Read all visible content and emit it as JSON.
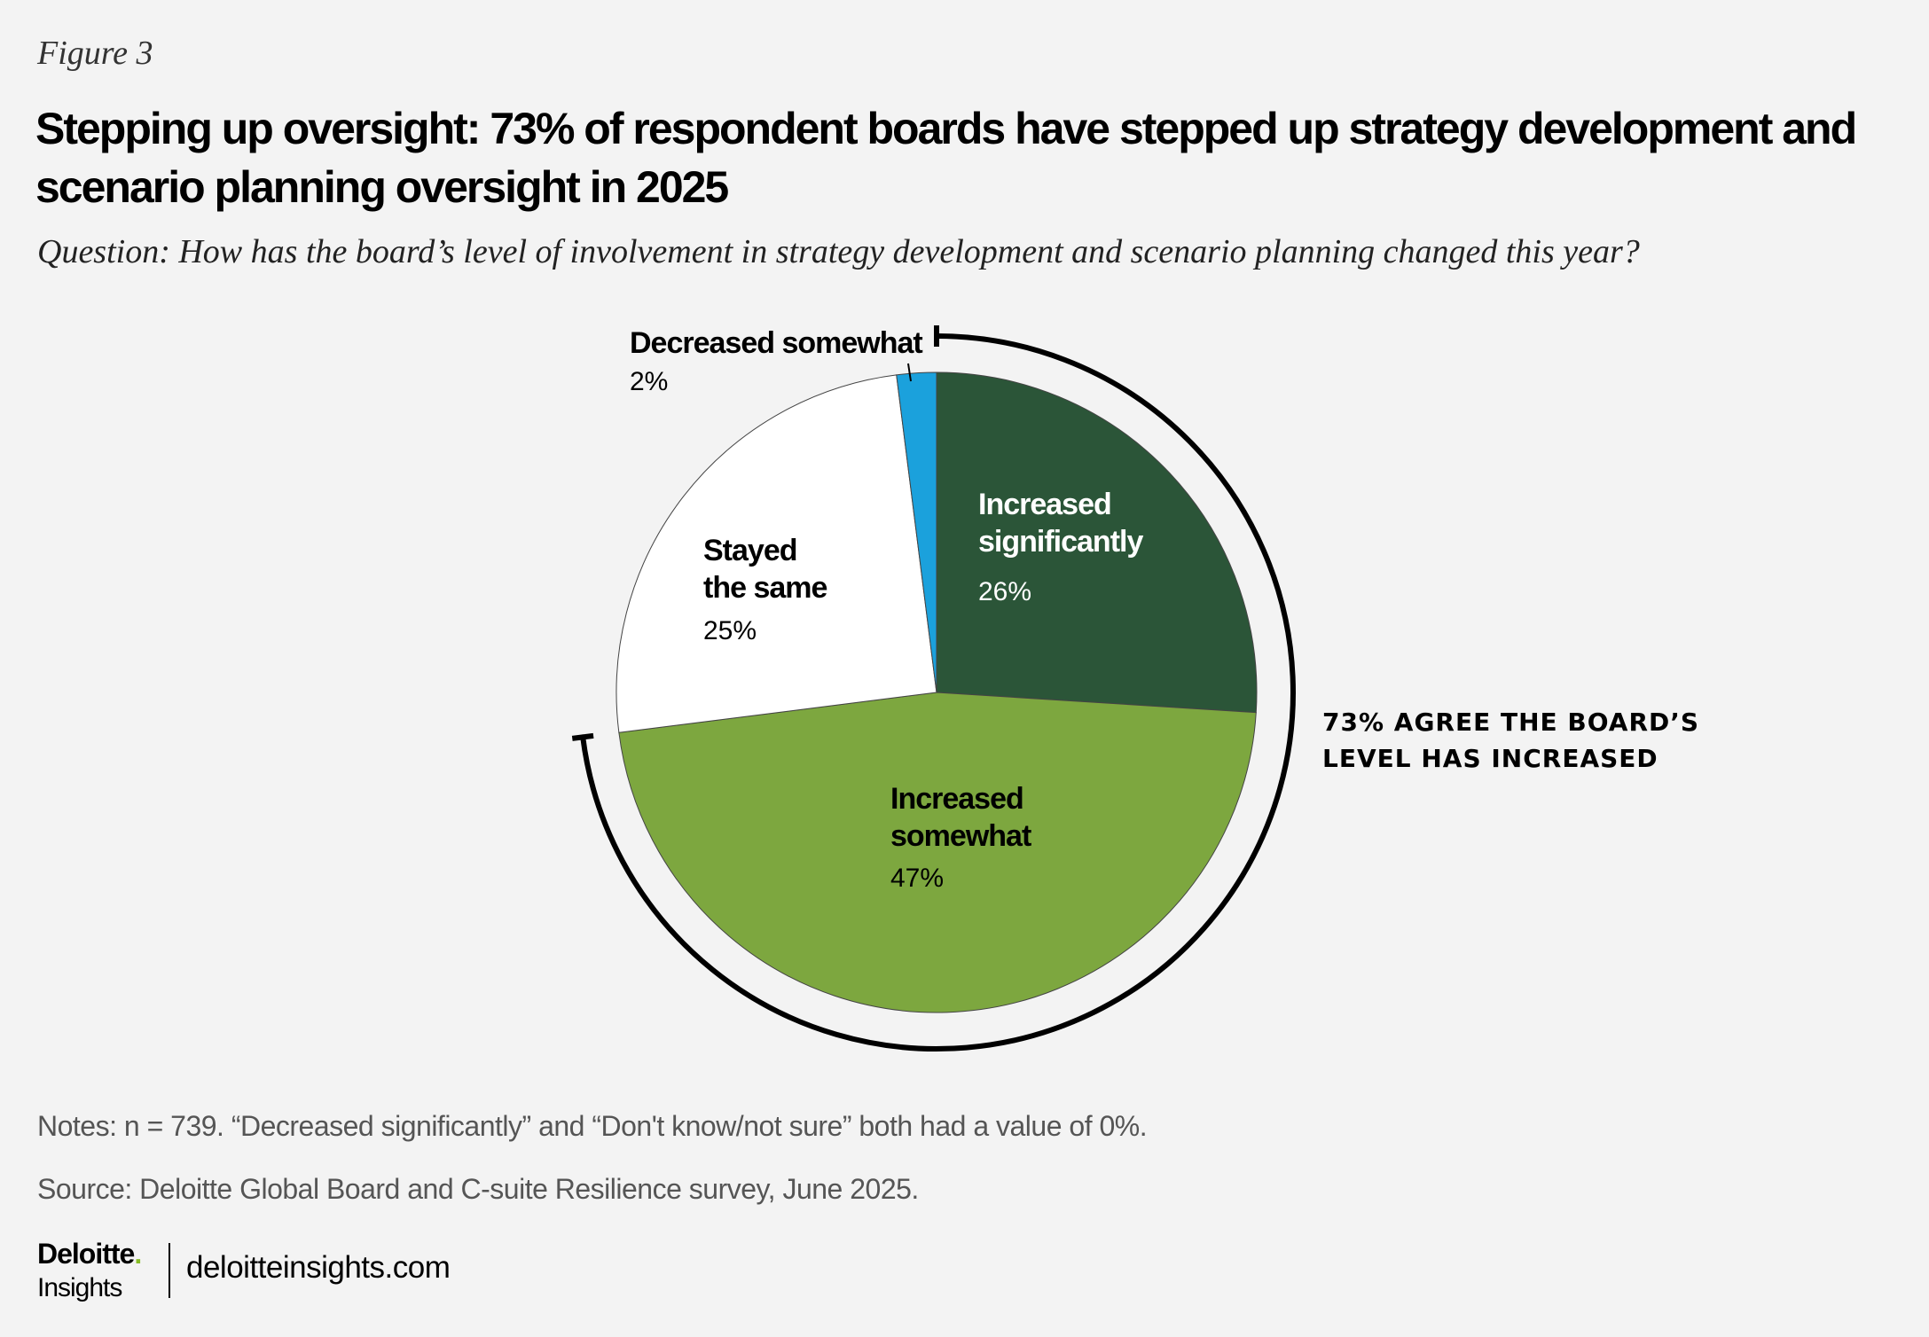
{
  "figure_label": "Figure 3",
  "title": "Stepping up oversight: 73% of respondent boards have stepped up strategy development and scenario planning oversight in 2025",
  "question": "Question: How has the board’s level of involvement in strategy development and scenario planning changed this year?",
  "chart_data": {
    "type": "pie",
    "start_angle": "top, clockwise",
    "slices": [
      {
        "label": "Increased significantly",
        "value": 26,
        "value_label": "26%",
        "color": "#2b5538",
        "text_color": "#ffffff"
      },
      {
        "label": "Increased somewhat",
        "value": 47,
        "value_label": "47%",
        "color": "#7da73f",
        "text_color": "#000000"
      },
      {
        "label": "Stayed the same",
        "value": 25,
        "value_label": "25%",
        "color": "#ffffff",
        "text_color": "#000000"
      },
      {
        "label": "Decreased somewhat",
        "value": 2,
        "value_label": "2%",
        "color": "#1ba1dc",
        "text_color": "#000000"
      }
    ],
    "annotation": {
      "lines": [
        "73% AGREE THE BOARD’S",
        "LEVEL HAS INCREASED"
      ],
      "bracket_share": 73
    }
  },
  "notes": "Notes: n = 739. “Decreased significantly” and “Don't know/not sure” both had a value of 0%.",
  "source": "Source: Deloitte Global Board and C-suite Resilience survey, June 2025.",
  "footer": {
    "logo_top": "Deloitte",
    "logo_dot": ".",
    "logo_bottom": "Insights",
    "site": "deloitteinsights.com"
  }
}
